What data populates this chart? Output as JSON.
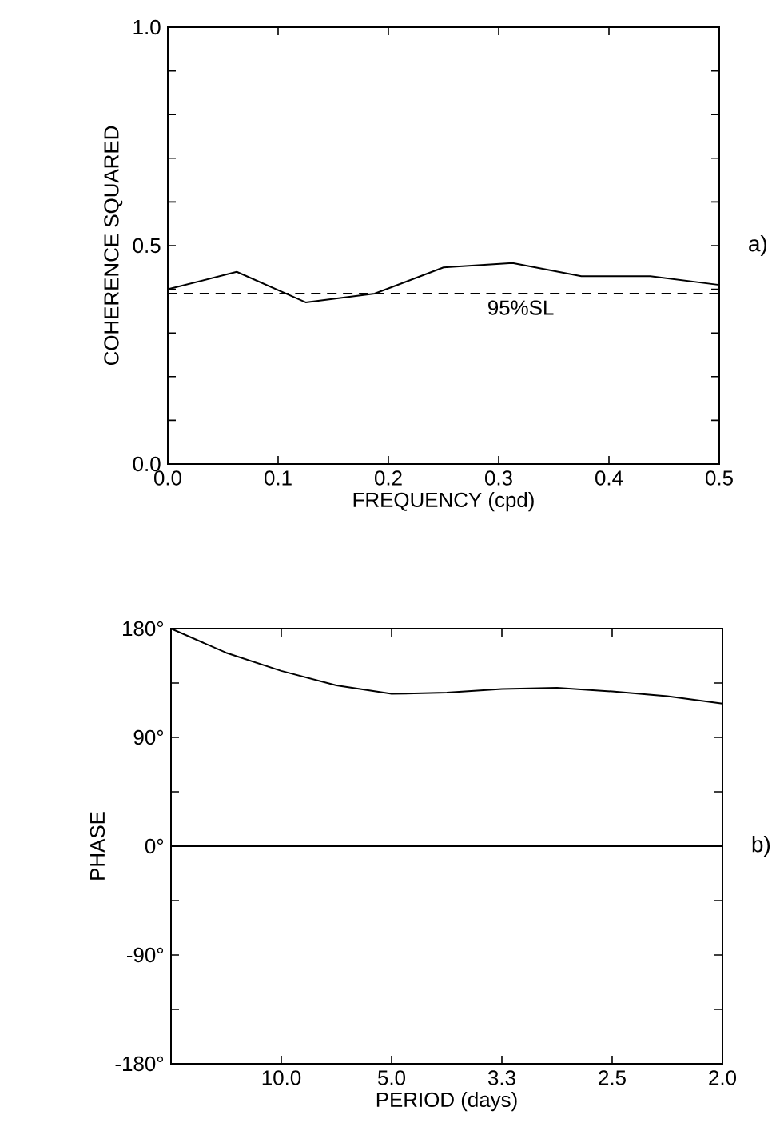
{
  "chart_data": [
    {
      "type": "line",
      "xlabel": "FREQUENCY (cpd)",
      "ylabel": "COHERENCE SQUARED",
      "annotations": [
        "a)"
      ],
      "x": [
        0,
        0.0625,
        0.125,
        0.1875,
        0.25,
        0.3125,
        0.375,
        0.4375,
        0.5
      ],
      "series": [
        {
          "color": "#000000",
          "values": [
            0.4,
            0.44,
            0.37,
            0.39,
            0.45,
            0.46,
            0.43,
            0.43,
            0.41
          ]
        }
      ],
      "xlim": [
        0,
        0.5
      ],
      "ylim": [
        0,
        1
      ],
      "xticks": [
        {
          "value": 0,
          "label": "0.0"
        },
        {
          "value": 0.1,
          "label": "0.1"
        },
        {
          "value": 0.2,
          "label": "0.2"
        },
        {
          "value": 0.3,
          "label": "0.3"
        },
        {
          "value": 0.4,
          "label": "0.4"
        },
        {
          "value": 0.5,
          "label": "0.5"
        }
      ],
      "yticks": [
        {
          "value": 0,
          "label": "0.0"
        },
        {
          "value": 0.1,
          "label": null
        },
        {
          "value": 0.2,
          "label": null
        },
        {
          "value": 0.3,
          "label": null
        },
        {
          "value": 0.4,
          "label": null
        },
        {
          "value": 0.5,
          "label": "0.5"
        },
        {
          "value": 0.6,
          "label": null
        },
        {
          "value": 0.7,
          "label": null
        },
        {
          "value": 0.8,
          "label": null
        },
        {
          "value": 0.9,
          "label": null
        },
        {
          "value": 1,
          "label": "1.0"
        }
      ],
      "ref_lines": [
        {
          "axis": "y",
          "value": 0.39,
          "label": "95%SL",
          "line_style": "dashed"
        }
      ]
    },
    {
      "type": "line",
      "xlabel": "PERIOD (days)",
      "ylabel": "PHASE",
      "annotations": [
        "b)"
      ],
      "categories": [
        null,
        null,
        "10.0",
        null,
        "5.0",
        null,
        "3.3",
        null,
        "2.5",
        null,
        "2.0"
      ],
      "series": [
        {
          "color": "#000000",
          "values": [
            180,
            160,
            145,
            133,
            126,
            127,
            130,
            131,
            128,
            124,
            118
          ]
        }
      ],
      "ylim": [
        -180,
        180
      ],
      "yticks": [
        {
          "value": -180,
          "label": "-180°"
        },
        {
          "value": -135,
          "label": null
        },
        {
          "value": -90,
          "label": "-90°"
        },
        {
          "value": -45,
          "label": null
        },
        {
          "value": 0,
          "label": "0°"
        },
        {
          "value": 45,
          "label": null
        },
        {
          "value": 90,
          "label": "90°"
        },
        {
          "value": 135,
          "label": null
        },
        {
          "value": 180,
          "label": "180°"
        }
      ],
      "ref_lines": [
        {
          "axis": "y",
          "value": 0,
          "line_style": "solid"
        }
      ]
    }
  ]
}
